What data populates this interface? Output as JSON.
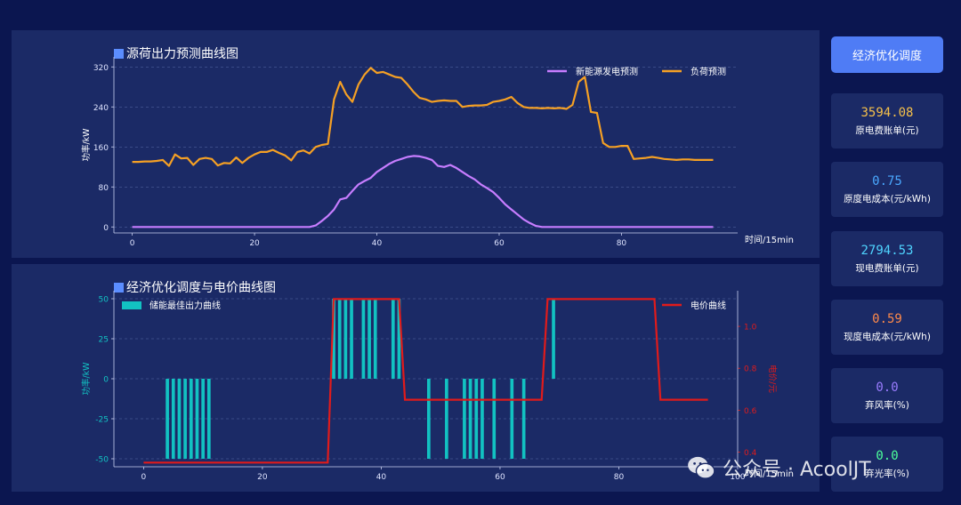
{
  "chart1": {
    "title": "源荷出力预测曲线图",
    "ylabel": "功率/kW",
    "xlabel": "时间/15min",
    "legend": [
      "新能源发电预测",
      "负荷预测"
    ]
  },
  "chart2": {
    "title": "经济优化调度与电价曲线图",
    "ylabel_left": "功率/kW",
    "ylabel_right": "电价/元",
    "xlabel": "时间/15min",
    "legend_left": "储能最佳出力曲线",
    "legend_right": "电价曲线"
  },
  "button_label": "经济优化调度",
  "cards": [
    {
      "value": "3594.08",
      "label": "原电费账单(元)",
      "color": "#f5c04a"
    },
    {
      "value": "0.75",
      "label": "原度电成本(元/kWh)",
      "color": "#4aa8ff"
    },
    {
      "value": "2794.53",
      "label": "现电费账单(元)",
      "color": "#4fd4ff"
    },
    {
      "value": "0.59",
      "label": "现度电成本(元/kWh)",
      "color": "#ff8a4a"
    },
    {
      "value": "0.0",
      "label": "弃风率(%)",
      "color": "#9a7cff"
    },
    {
      "value": "0.0",
      "label": "弃光率(%)",
      "color": "#4cff9a"
    }
  ],
  "watermark": "公众号 · AcoolJT",
  "chart_data": [
    {
      "type": "line",
      "title": "源荷出力预测曲线图",
      "xlabel": "时间/15min",
      "ylabel": "功率/kW",
      "xlim": [
        -3,
        99
      ],
      "ylim": [
        -12,
        340
      ],
      "xticks": [
        0,
        20,
        40,
        60,
        80
      ],
      "yticks": [
        0,
        80,
        160,
        240,
        320
      ],
      "grid": "horizontal dashed",
      "legend_position": "top-right",
      "series": [
        {
          "name": "新能源发电预测",
          "color": "#c77dff",
          "values": [
            0,
            0,
            0,
            0,
            0,
            0,
            0,
            0,
            0,
            0,
            0,
            0,
            0,
            0,
            0,
            0,
            0,
            0,
            0,
            0,
            0,
            0,
            0,
            0,
            0,
            0,
            0,
            0,
            0,
            0,
            3,
            12,
            22,
            35,
            55,
            58,
            72,
            85,
            92,
            98,
            110,
            118,
            126,
            132,
            136,
            140,
            142,
            141,
            138,
            134,
            122,
            120,
            124,
            118,
            110,
            102,
            95,
            85,
            78,
            70,
            58,
            45,
            35,
            25,
            15,
            8,
            2,
            0,
            0,
            0,
            0,
            0,
            0,
            0,
            0,
            0,
            0,
            0,
            0,
            0,
            0,
            0,
            0,
            0,
            0,
            0,
            0,
            0,
            0,
            0,
            0,
            0,
            0,
            0,
            0,
            0
          ]
        },
        {
          "name": "负荷预测",
          "color": "#f5a024",
          "values": [
            130,
            130,
            131,
            131,
            132,
            134,
            122,
            145,
            137,
            138,
            124,
            136,
            138,
            136,
            123,
            128,
            127,
            139,
            128,
            138,
            145,
            150,
            150,
            154,
            148,
            143,
            133,
            150,
            153,
            147,
            160,
            164,
            166,
            255,
            290,
            265,
            250,
            285,
            305,
            318,
            308,
            310,
            305,
            300,
            298,
            285,
            270,
            258,
            255,
            250,
            252,
            253,
            252,
            252,
            240,
            242,
            243,
            243,
            244,
            250,
            252,
            255,
            260,
            248,
            240,
            238,
            238,
            237,
            238,
            237,
            238,
            236,
            244,
            290,
            300,
            230,
            228,
            168,
            160,
            160,
            162,
            162,
            136,
            137,
            138,
            140,
            138,
            136,
            135,
            134,
            135,
            135,
            134,
            134,
            134,
            134
          ]
        }
      ]
    },
    {
      "type": "bar",
      "title": "经济优化调度与电价曲线图",
      "xlabel": "时间/15min",
      "ylabel": "功率/kW",
      "y2label": "电价/元",
      "xlim": [
        -5,
        100
      ],
      "ylim": [
        -55,
        55
      ],
      "y2lim": [
        0.33,
        1.17
      ],
      "xticks": [
        0,
        20,
        40,
        60,
        80,
        100
      ],
      "yticks": [
        -50,
        -25,
        0,
        25,
        50
      ],
      "y2ticks": [
        0.4,
        0.6,
        0.8,
        1.0
      ],
      "grid": "horizontal dashed",
      "series": [
        {
          "name": "储能最佳出力曲线",
          "color": "#12c2c2",
          "values": [
            0,
            0,
            0,
            0,
            -50,
            -50,
            -50,
            -50,
            -50,
            -50,
            -50,
            -50,
            0,
            0,
            0,
            0,
            0,
            0,
            0,
            0,
            0,
            0,
            0,
            0,
            0,
            0,
            0,
            0,
            0,
            0,
            0,
            0,
            50,
            50,
            50,
            50,
            0,
            50,
            50,
            50,
            0,
            0,
            50,
            50,
            0,
            0,
            0,
            0,
            -50,
            0,
            0,
            -50,
            0,
            0,
            -50,
            -50,
            -50,
            -50,
            0,
            -50,
            0,
            0,
            -50,
            0,
            -50,
            0,
            0,
            0,
            0,
            50,
            0,
            0,
            0,
            0,
            0,
            0,
            0,
            0,
            0,
            0,
            0,
            0,
            0,
            0,
            0,
            0,
            0,
            0,
            0,
            0,
            0,
            0,
            0,
            0,
            0,
            0
          ]
        },
        {
          "name": "电价曲线",
          "type": "line",
          "color": "#e01b1b",
          "axis": "right",
          "values": [
            0.35,
            0.35,
            0.35,
            0.35,
            0.35,
            0.35,
            0.35,
            0.35,
            0.35,
            0.35,
            0.35,
            0.35,
            0.35,
            0.35,
            0.35,
            0.35,
            0.35,
            0.35,
            0.35,
            0.35,
            0.35,
            0.35,
            0.35,
            0.35,
            0.35,
            0.35,
            0.35,
            0.35,
            0.35,
            0.35,
            0.35,
            0.35,
            1.13,
            1.13,
            1.13,
            1.13,
            1.13,
            1.13,
            1.13,
            1.13,
            1.13,
            1.13,
            1.13,
            1.13,
            0.65,
            0.65,
            0.65,
            0.65,
            0.65,
            0.65,
            0.65,
            0.65,
            0.65,
            0.65,
            0.65,
            0.65,
            0.65,
            0.65,
            0.65,
            0.65,
            0.65,
            0.65,
            0.65,
            0.65,
            0.65,
            0.65,
            0.65,
            0.65,
            1.13,
            1.13,
            1.13,
            1.13,
            1.13,
            1.13,
            1.13,
            1.13,
            1.13,
            1.13,
            1.13,
            1.13,
            1.13,
            1.13,
            1.13,
            1.13,
            1.13,
            1.13,
            1.13,
            0.65,
            0.65,
            0.65,
            0.65,
            0.65,
            0.65,
            0.65,
            0.65,
            0.65
          ]
        }
      ]
    }
  ]
}
